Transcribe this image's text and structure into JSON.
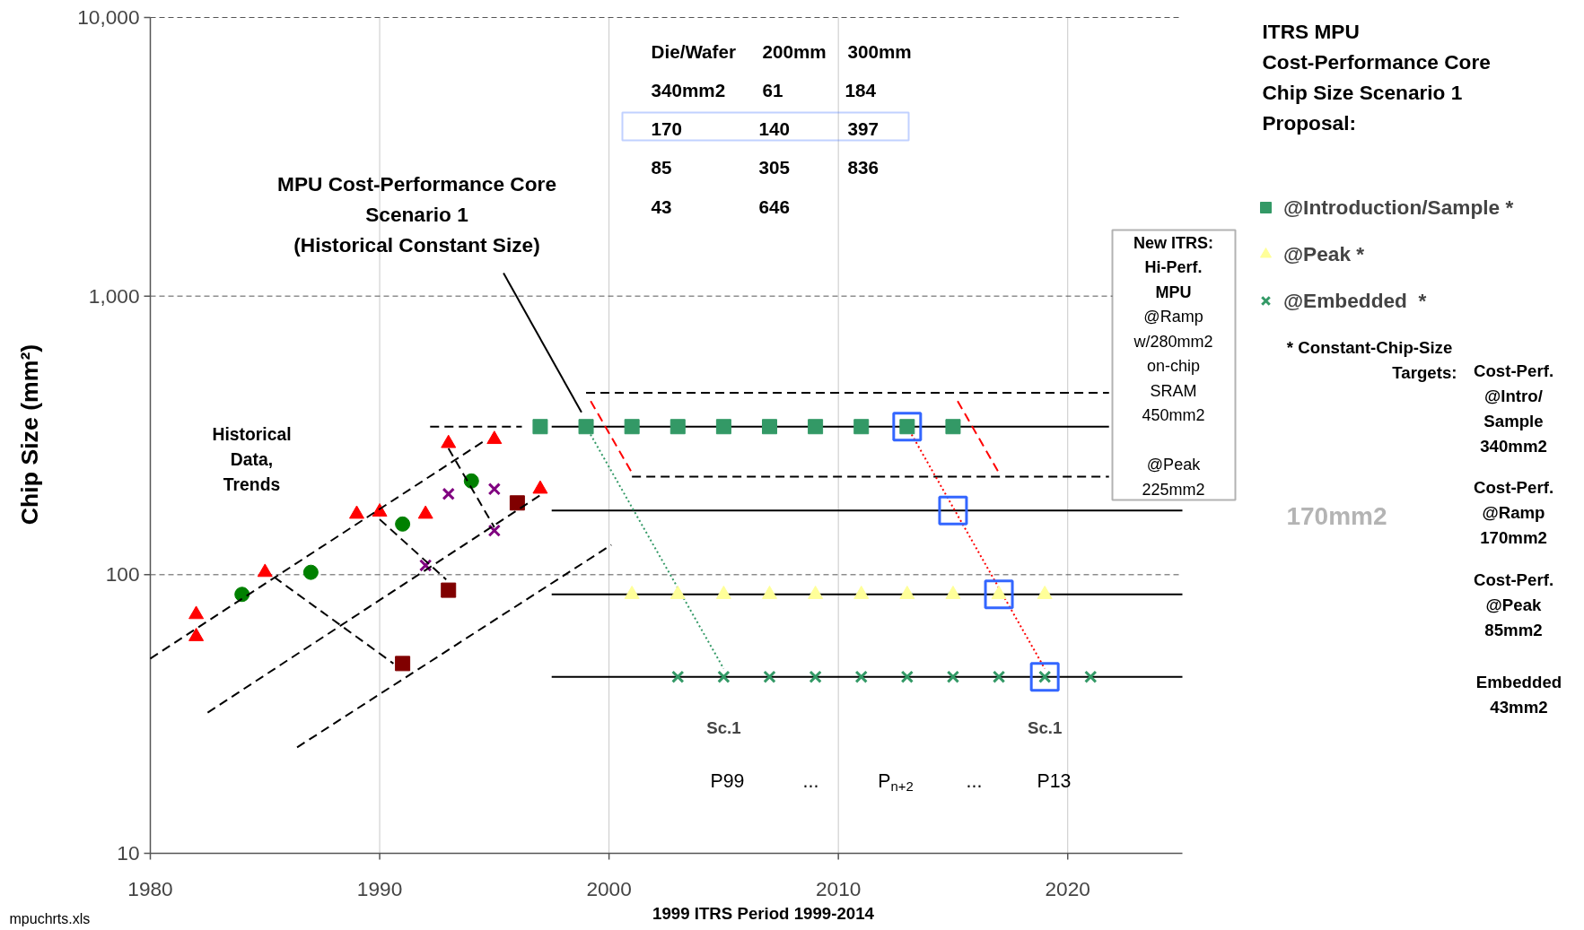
{
  "chart_data": {
    "type": "scatter",
    "ylabel": "Chip Size (mm²)",
    "legend_title": "ITRS MPU\nCost-Performance Core\nChip Size Scenario 1\nProposal:",
    "xlim": [
      1980,
      2025
    ],
    "xticks": [
      1980,
      1990,
      2000,
      2010,
      2020
    ],
    "ylim": [
      10,
      10000
    ],
    "log": true,
    "yticks": [
      {
        "value": 10,
        "label": "10"
      },
      {
        "value": 100,
        "label": "100"
      },
      {
        "value": 1000,
        "label": "1,000"
      },
      {
        "value": 10000,
        "label": "10,000"
      }
    ],
    "grid": true,
    "legend": "right",
    "series": [
      {
        "marker": "triangle",
        "color": "#ff0000",
        "x": [
          1982,
          1982,
          1985,
          1989,
          1990,
          1992,
          1993,
          1995,
          1997
        ],
        "values": [
          72,
          60,
          102,
          165,
          168,
          165,
          296,
          306,
          203
        ]
      },
      {
        "marker": "circle",
        "color": "#008000",
        "x": [
          1984,
          1987,
          1991,
          1994
        ],
        "values": [
          85,
          102,
          152,
          217
        ]
      },
      {
        "marker": "cross",
        "color": "#800080",
        "x": [
          1993,
          1995,
          1992,
          1995
        ],
        "values": [
          195,
          203,
          108,
          144
        ]
      },
      {
        "marker": "square",
        "color": "#800000",
        "x": [
          1991,
          1993,
          1996
        ],
        "values": [
          48,
          88,
          181
        ]
      },
      {
        "type": "line",
        "line_style": "dashed",
        "color": "#000000",
        "x": [
          1980,
          1994.5
        ],
        "values": [
          50,
          300
        ]
      },
      {
        "type": "line",
        "line_style": "dashed",
        "color": "#000000",
        "x": [
          1982.5,
          1997
        ],
        "values": [
          32,
          193
        ]
      },
      {
        "type": "line",
        "line_style": "dashed",
        "color": "#000000",
        "x": [
          1986.4,
          2000.1
        ],
        "values": [
          24,
          128
        ]
      },
      {
        "type": "line",
        "line_style": "dashed",
        "color": "#000000",
        "x": [
          1992.2,
          1996.2
        ],
        "values": [
          340,
          340
        ]
      },
      {
        "type": "line",
        "line_style": "dashed",
        "color": "#000000",
        "x": [
          1985.4,
          1990.6
        ],
        "values": [
          98,
          48
        ]
      },
      {
        "type": "line",
        "line_style": "dashed",
        "color": "#000000",
        "x": [
          1990,
          1992.9
        ],
        "values": [
          158,
          96
        ]
      },
      {
        "type": "line",
        "line_style": "dashed",
        "color": "#000000",
        "x": [
          1993,
          1995
        ],
        "values": [
          284,
          148
        ]
      },
      {
        "type": "line",
        "line_style": "solid",
        "color": "#000000",
        "x": [
          1995.4,
          1998.8
        ],
        "values": [
          1210,
          383
        ]
      },
      {
        "type": "line",
        "line_style": "solid",
        "color": "#000000",
        "x": [
          1997.5,
          2021.8
        ],
        "values": [
          340,
          340
        ]
      },
      {
        "type": "line",
        "line_style": "solid",
        "color": "#000000",
        "x": [
          1997.5,
          2025
        ],
        "values": [
          170,
          170
        ]
      },
      {
        "type": "line",
        "line_style": "solid",
        "color": "#000000",
        "x": [
          1997.5,
          2025
        ],
        "values": [
          85,
          85
        ]
      },
      {
        "type": "line",
        "line_style": "solid",
        "color": "#000000",
        "x": [
          1997.5,
          2025
        ],
        "values": [
          43,
          43
        ]
      },
      {
        "type": "line",
        "line_style": "dashed",
        "color": "#000000",
        "x": [
          1999,
          2021.8
        ],
        "values": [
          450,
          450
        ]
      },
      {
        "type": "line",
        "line_style": "dashed",
        "color": "#000000",
        "x": [
          2001,
          2021.8
        ],
        "values": [
          225,
          225
        ]
      },
      {
        "type": "line",
        "line_style": "dotted",
        "color": "#339966",
        "x": [
          1999,
          2005
        ],
        "values": [
          340,
          46
        ]
      },
      {
        "type": "line",
        "line_style": "dotted",
        "color": "#ff0000",
        "x": [
          2013,
          2019
        ],
        "values": [
          340,
          46
        ]
      },
      {
        "type": "line",
        "line_style": "dashed",
        "color": "#ff0000",
        "x": [
          1999.2,
          2001
        ],
        "values": [
          420,
          232
        ]
      },
      {
        "type": "line",
        "line_style": "dashed",
        "color": "#ff0000",
        "x": [
          2015.2,
          2017
        ],
        "values": [
          420,
          232
        ]
      },
      {
        "marker": "square",
        "color": "#339966",
        "name": "@Introduction/Sample *",
        "x": [
          1997,
          1999,
          2001,
          2003,
          2005,
          2007,
          2009,
          2011,
          2013,
          2015
        ],
        "values": [
          340,
          340,
          340,
          340,
          340,
          340,
          340,
          340,
          340,
          340
        ]
      },
      {
        "marker": "triangle",
        "color": "#ffff99",
        "name": "@Peak *",
        "x": [
          2001,
          2003,
          2005,
          2007,
          2009,
          2011,
          2013,
          2015,
          2017,
          2019
        ],
        "values": [
          85,
          85,
          85,
          85,
          85,
          85,
          85,
          85,
          85,
          85
        ]
      },
      {
        "marker": "cross",
        "color": "#339966",
        "name": "@Embedded  *",
        "x": [
          2003,
          2005,
          2007,
          2009,
          2011,
          2013,
          2015,
          2017,
          2019,
          2021
        ],
        "values": [
          43,
          43,
          43,
          43,
          43,
          43,
          43,
          43,
          43,
          43
        ]
      },
      {
        "marker": "square",
        "line_style": "solid",
        "color": "#3366ff",
        "x": [
          2013,
          2015,
          2017,
          2019
        ],
        "values": [
          340,
          170,
          85,
          43
        ]
      }
    ],
    "annotations": [
      "MPU Cost-Performance Core\nScenario 1\n(Historical Constant Size)",
      "Historical\nData,\nTrends",
      "Die/Wafer",
      "200mm",
      "300mm",
      "340mm2",
      "61",
      "184",
      "170",
      "140",
      "397",
      "85",
      "305",
      "836",
      "43",
      "646",
      "New ITRS:\nHi-Perf.\nMPU\n@Ramp\nw/280mm2\non-chip\nSRAM\n450mm2\n\n@Peak\n225mm2",
      "*  Constant-Chip-Size\nTargets:",
      "Cost-Perf.\n@Intro/\nSample\n340mm2",
      "Cost-Perf.\n@Ramp\n170mm2",
      "Cost-Perf.\n@Peak\n85mm2",
      "Embedded\n43mm2",
      "170mm2",
      "P99",
      "...",
      "P$_{n+2}$",
      "...",
      "P13",
      "1999 ITRS Period 1999-2014",
      "mpuchrts.xls",
      {
        "text": "Sc.1",
        "x": 2005,
        "y": 43
      },
      {
        "text": "Sc.1",
        "x": 2019,
        "y": 43
      }
    ]
  }
}
